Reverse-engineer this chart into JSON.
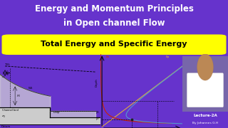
{
  "bg_color": "#6633cc",
  "title_line1": "Energy and Momentum Principles",
  "title_line2": "in Open channel Flow",
  "subtitle": "Total Energy and Specific Energy",
  "subtitle_bg": "#ffff00",
  "title_color": "#ffffff",
  "subtitle_color": "#000000",
  "diagram_bg": "#f5f5f5",
  "curve_red": "#cc2200",
  "curve_blue": "#5599cc",
  "curve_orange": "#ddaa44",
  "person_bg": "#8855aa",
  "lecture_text1": "Lecture-2A",
  "lecture_text2": "By Johannes G.H"
}
